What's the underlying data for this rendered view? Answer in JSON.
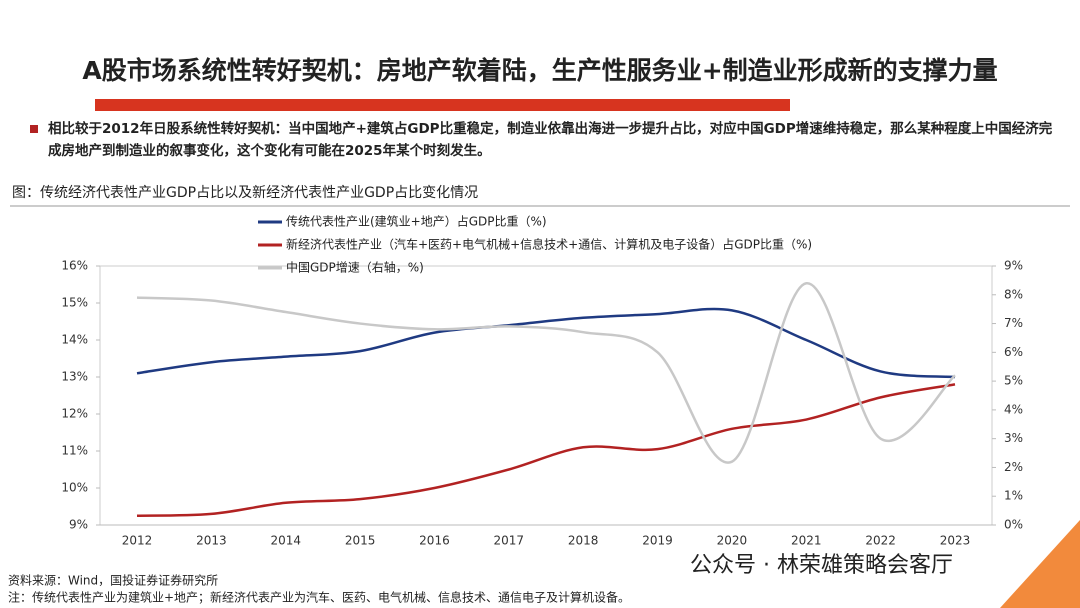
{
  "header": {
    "title": "A股市场系统性转好契机：房地产软着陆，生产性服务业+制造业形成新的支撑力量"
  },
  "bullet": "相比较于2012年日股系统性转好契机：当中国地产+建筑占GDP比重稳定，制造业依靠出海进一步提升占比，对应中国GDP增速维持稳定，那么某种程度上中国经济完成房地产到制造业的叙事变化，这个变化有可能在2025年某个时刻发生。",
  "caption": "图：传统经济代表性产业GDP占比以及新经济代表性产业GDP占比变化情况",
  "chart_data": {
    "type": "line",
    "categories": [
      "2012",
      "2013",
      "2014",
      "2015",
      "2016",
      "2017",
      "2018",
      "2019",
      "2020",
      "2021",
      "2022",
      "2023"
    ],
    "series": [
      {
        "name": "传统代表性产业(建筑业+地产）占GDP比重（%)",
        "color": "#1f3a82",
        "values": [
          13.1,
          13.4,
          13.55,
          13.7,
          14.2,
          14.4,
          14.6,
          14.7,
          14.8,
          14.0,
          13.15,
          13.0
        ]
      },
      {
        "name": "新经济代表性产业（汽车+医药+电气机械+信息技术+通信、计算机及电子设备）占GDP比重（%)",
        "color": "#b22222",
        "values": [
          9.25,
          9.3,
          9.6,
          9.7,
          10.0,
          10.5,
          11.1,
          11.05,
          11.6,
          11.85,
          12.45,
          12.8
        ]
      },
      {
        "name": "中国GDP增速（右轴，%)",
        "color": "#c8c8c8",
        "axis": "y2",
        "values": [
          7.9,
          7.8,
          7.4,
          7.0,
          6.8,
          6.9,
          6.7,
          6.0,
          2.2,
          8.4,
          3.0,
          5.2
        ]
      }
    ],
    "ylim": [
      9,
      16
    ],
    "yticks": [
      {
        "value": 9,
        "label": "9%"
      },
      {
        "value": 10,
        "label": "10%"
      },
      {
        "value": 11,
        "label": "11%"
      },
      {
        "value": 12,
        "label": "12%"
      },
      {
        "value": 13,
        "label": "13%"
      },
      {
        "value": 14,
        "label": "14%"
      },
      {
        "value": 15,
        "label": "15%"
      },
      {
        "value": 16,
        "label": "16%"
      }
    ],
    "y2lim": [
      0,
      9
    ],
    "y2ticks": [
      {
        "value": 0,
        "label": "0%"
      },
      {
        "value": 1,
        "label": "1%"
      },
      {
        "value": 2,
        "label": "2%"
      },
      {
        "value": 3,
        "label": "3%"
      },
      {
        "value": 4,
        "label": "4%"
      },
      {
        "value": 5,
        "label": "5%"
      },
      {
        "value": 6,
        "label": "6%"
      },
      {
        "value": 7,
        "label": "7%"
      },
      {
        "value": 8,
        "label": "8%"
      },
      {
        "value": 9,
        "label": "9%"
      }
    ]
  },
  "footer": {
    "source": "资料来源：Wind，国投证券证券研究所",
    "note": "注：传统代表性产业为建筑业+地产；新经济代表产业为汽车、医药、电气机械、信息技术、通信电子及计算机设备。"
  },
  "watermark": "公众号 · 林荣雄策略会客厅"
}
